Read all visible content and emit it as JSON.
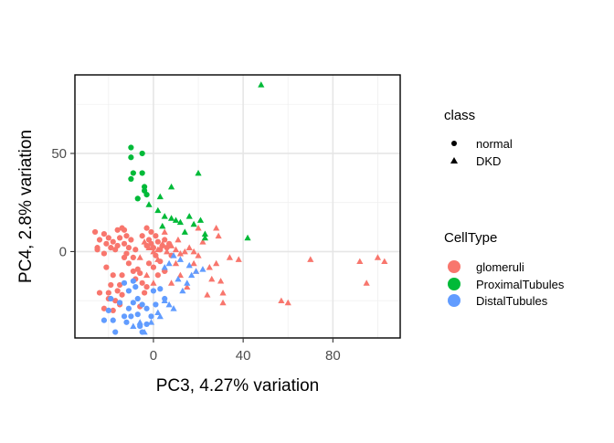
{
  "chart_data": {
    "type": "scatter",
    "xlabel": "PC3, 4.27% variation",
    "ylabel": "PC4, 2.8% variation",
    "xlim": [
      -35,
      110
    ],
    "ylim": [
      -44,
      90
    ],
    "xticks": [
      0,
      40,
      80
    ],
    "yticks": [
      0,
      50
    ],
    "grid": true,
    "legend_position": "right",
    "legends": [
      {
        "title": "class",
        "entries": [
          {
            "label": "normal",
            "shape": "circle"
          },
          {
            "label": "DKD",
            "shape": "triangle"
          }
        ]
      },
      {
        "title": "CellType",
        "entries": [
          {
            "label": "glomeruli",
            "color": "#F8766D"
          },
          {
            "label": "ProximalTubules",
            "color": "#00BA38"
          },
          {
            "label": "DistalTubules",
            "color": "#619CFF"
          }
        ]
      }
    ],
    "colors": {
      "glomeruli": "#F8766D",
      "ProximalTubules": "#00BA38",
      "DistalTubules": "#619CFF"
    },
    "series": [
      {
        "cell_type": "glomeruli",
        "class": "normal",
        "points": [
          [
            -26,
            10
          ],
          [
            -24,
            6
          ],
          [
            -25,
            1
          ],
          [
            -22,
            9
          ],
          [
            -20,
            7
          ],
          [
            -21,
            4
          ],
          [
            -19,
            2
          ],
          [
            -18,
            5
          ],
          [
            -17,
            1
          ],
          [
            -16,
            3
          ],
          [
            -15,
            7
          ],
          [
            -14,
            12
          ],
          [
            -13,
            4
          ],
          [
            -12,
            8
          ],
          [
            -11,
            2
          ],
          [
            -10,
            6
          ],
          [
            -12,
            -1
          ],
          [
            -13,
            11
          ],
          [
            -9,
            -3
          ],
          [
            -8,
            1
          ],
          [
            -22,
            -1
          ],
          [
            -21,
            -8
          ],
          [
            -18,
            -12
          ],
          [
            -16,
            -20
          ],
          [
            -14,
            -22
          ],
          [
            -19,
            -17
          ],
          [
            -20,
            -24
          ],
          [
            -17,
            -25
          ],
          [
            -15,
            -27
          ],
          [
            -8,
            -14
          ],
          [
            -7,
            -9
          ],
          [
            -6,
            -11
          ],
          [
            -5,
            -16
          ],
          [
            -3,
            -18
          ],
          [
            -4,
            -21
          ],
          [
            -6,
            -28
          ],
          [
            -24,
            -21
          ],
          [
            -22,
            -29
          ],
          [
            -20,
            -21
          ],
          [
            -18,
            -30
          ],
          [
            -3,
            3
          ],
          [
            -2,
            6
          ],
          [
            -1,
            4
          ],
          [
            0,
            2
          ],
          [
            1,
            8
          ],
          [
            2,
            5
          ],
          [
            3,
            1
          ],
          [
            4,
            3
          ],
          [
            5,
            6
          ],
          [
            6,
            2
          ],
          [
            7,
            4
          ],
          [
            -5,
            8
          ],
          [
            -3,
            12
          ],
          [
            -1,
            10
          ],
          [
            1,
            -2
          ],
          [
            3,
            -5
          ],
          [
            5,
            -10
          ],
          [
            8,
            -2
          ],
          [
            -11,
            -6
          ],
          [
            -9,
            -10
          ],
          [
            -14,
            -12
          ],
          [
            -15,
            -17
          ],
          [
            -13,
            -3
          ],
          [
            -2,
            -6
          ],
          [
            0,
            -8
          ],
          [
            2,
            -12
          ],
          [
            -25,
            2
          ],
          [
            -16,
            11
          ]
        ]
      },
      {
        "cell_type": "glomeruli",
        "class": "DKD",
        "points": [
          [
            -4,
            5
          ],
          [
            -2,
            2
          ],
          [
            0,
            0
          ],
          [
            2,
            1
          ],
          [
            4,
            4
          ],
          [
            6,
            0
          ],
          [
            8,
            3
          ],
          [
            10,
            1
          ],
          [
            12,
            -1
          ],
          [
            14,
            0
          ],
          [
            16,
            2
          ],
          [
            18,
            0
          ],
          [
            20,
            -2
          ],
          [
            22,
            5
          ],
          [
            28,
            12
          ],
          [
            29,
            8
          ],
          [
            25,
            -8
          ],
          [
            26,
            -14
          ],
          [
            24,
            -22
          ],
          [
            28,
            -6
          ],
          [
            30,
            -15
          ],
          [
            31,
            -21
          ],
          [
            31,
            -26
          ],
          [
            34,
            -3
          ],
          [
            38,
            -4
          ],
          [
            12,
            -12
          ],
          [
            15,
            -18
          ],
          [
            8,
            -16
          ],
          [
            10,
            -6
          ],
          [
            19,
            -10
          ],
          [
            18,
            -6
          ],
          [
            11,
            6
          ],
          [
            2,
            -4
          ],
          [
            5,
            -9
          ],
          [
            -3,
            -12
          ],
          [
            0,
            -16
          ],
          [
            60,
            -26
          ],
          [
            57,
            -25
          ],
          [
            70,
            -4
          ],
          [
            92,
            -5
          ],
          [
            95,
            -16
          ],
          [
            100,
            -3
          ],
          [
            103,
            -5
          ],
          [
            20,
            12
          ],
          [
            5,
            10
          ],
          [
            -6,
            -3
          ]
        ]
      },
      {
        "cell_type": "ProximalTubules",
        "class": "normal",
        "points": [
          [
            -10,
            53
          ],
          [
            -10,
            48
          ],
          [
            -5,
            50
          ],
          [
            -9,
            40
          ],
          [
            -5,
            40
          ],
          [
            -4,
            33
          ],
          [
            -4,
            31
          ],
          [
            -3,
            29
          ],
          [
            -7,
            27
          ],
          [
            -10,
            37
          ]
        ]
      },
      {
        "cell_type": "ProximalTubules",
        "class": "DKD",
        "points": [
          [
            48,
            85
          ],
          [
            20,
            40
          ],
          [
            8,
            33
          ],
          [
            3,
            28
          ],
          [
            2,
            21
          ],
          [
            5,
            18
          ],
          [
            8,
            17
          ],
          [
            10,
            16
          ],
          [
            12,
            15
          ],
          [
            16,
            18
          ],
          [
            18,
            14
          ],
          [
            21,
            16
          ],
          [
            23,
            9
          ],
          [
            23,
            7
          ],
          [
            42,
            7
          ],
          [
            14,
            10
          ],
          [
            4,
            13
          ],
          [
            -2,
            24
          ]
        ]
      },
      {
        "cell_type": "DistalTubules",
        "class": "normal",
        "points": [
          [
            -20,
            -30
          ],
          [
            -18,
            -35
          ],
          [
            -17,
            -41
          ],
          [
            -15,
            -26
          ],
          [
            -13,
            -33
          ],
          [
            -11,
            -29
          ],
          [
            -9,
            -26
          ],
          [
            -7,
            -32
          ],
          [
            -5,
            -41
          ],
          [
            -3,
            -37
          ],
          [
            -1,
            -33
          ],
          [
            -13,
            -16
          ],
          [
            -11,
            -20
          ],
          [
            -9,
            -15
          ],
          [
            -7,
            -24
          ],
          [
            -5,
            -27
          ],
          [
            -3,
            -29
          ],
          [
            1,
            -27
          ],
          [
            3,
            -19
          ],
          [
            5,
            -24
          ],
          [
            -8,
            -18
          ],
          [
            -10,
            -33
          ],
          [
            -12,
            -36
          ],
          [
            -6,
            -38
          ],
          [
            0,
            -20
          ],
          [
            -22,
            -35
          ],
          [
            -19,
            -24
          ]
        ]
      },
      {
        "cell_type": "DistalTubules",
        "class": "DKD",
        "points": [
          [
            -9,
            -38
          ],
          [
            -6,
            -36
          ],
          [
            -4,
            -41
          ],
          [
            -1,
            -36
          ],
          [
            3,
            -33
          ],
          [
            5,
            -25
          ],
          [
            7,
            -27
          ],
          [
            9,
            -29
          ],
          [
            11,
            -14
          ],
          [
            13,
            -20
          ],
          [
            15,
            -16
          ],
          [
            17,
            -12
          ],
          [
            19,
            -10
          ],
          [
            7,
            -6
          ],
          [
            5,
            -8
          ],
          [
            9,
            -2
          ],
          [
            12,
            -4
          ],
          [
            16,
            -7
          ],
          [
            22,
            -9
          ],
          [
            2,
            -31
          ]
        ]
      }
    ]
  }
}
